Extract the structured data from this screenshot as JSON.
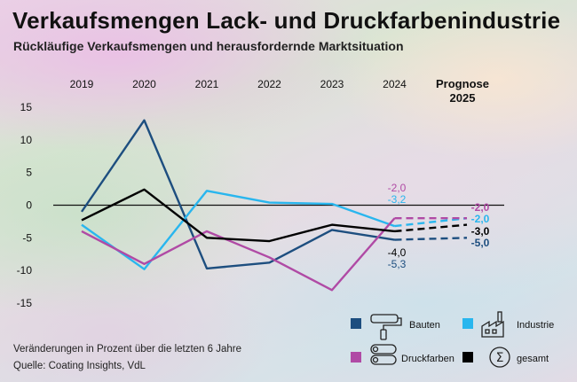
{
  "header": {
    "title": "Verkaufsmengen Lack- und Druckfarbenindustrie",
    "subtitle": "Rückläufige Verkaufsmengen und herausfordernde Marktsituation"
  },
  "footer": {
    "note": "Veränderungen in Prozent über die letzten 6 Jahre",
    "source": "Quelle: Coating Insights, VdL"
  },
  "chart_data": {
    "type": "line",
    "title": "Verkaufsmengen Lack- und Druckfarbenindustrie",
    "subtitle": "Rückläufige Verkaufsmengen und herausfordernde Marktsituation",
    "xlabel": "",
    "ylabel": "",
    "categories": [
      "2019",
      "2020",
      "2021",
      "2022",
      "2023",
      "2024"
    ],
    "forecast_label_line1": "Prognose",
    "forecast_label_line2": "2025",
    "ylim": [
      -17,
      17
    ],
    "yticks": [
      15,
      10,
      5,
      0,
      -5,
      -10,
      -15
    ],
    "ytick_labels": [
      "15",
      "10",
      "5",
      "0",
      "-5",
      "-10",
      "-15"
    ],
    "grid": false,
    "zero_line": true,
    "legend_position": "bottom-right",
    "series": [
      {
        "key": "bauten",
        "name": "Bauten",
        "color": "#1d4e7f",
        "icon": "paint-roller-icon",
        "values": [
          -1,
          13,
          -9.7,
          -8.8,
          -3.8,
          -5.3
        ],
        "forecast": -5.0,
        "label_2024": "-5,3",
        "label_2025": "-5,0"
      },
      {
        "key": "industrie",
        "name": "Industrie",
        "color": "#29b6ee",
        "icon": "factory-icon",
        "values": [
          -3,
          -9.8,
          2.2,
          0.4,
          0.2,
          -3.2
        ],
        "forecast": -2.0,
        "label_2024": "-3,2",
        "label_2025": "-2,0"
      },
      {
        "key": "druckfarben",
        "name": "Druckfarben",
        "color": "#b04aa5",
        "icon": "printing-rollers-icon",
        "values": [
          -4,
          -9,
          -4,
          -8,
          -13,
          -2.0
        ],
        "forecast": -2.0,
        "label_2024": "-2,0",
        "label_2025": "-2,0"
      },
      {
        "key": "gesamt",
        "name": "gesamt",
        "color": "#000000",
        "icon": "sigma-icon",
        "values": [
          -2.3,
          2.4,
          -5,
          -5.5,
          -3,
          -4.0
        ],
        "forecast": -3.0,
        "label_2024": "-4,0",
        "label_2025": "-3,0"
      }
    ]
  }
}
